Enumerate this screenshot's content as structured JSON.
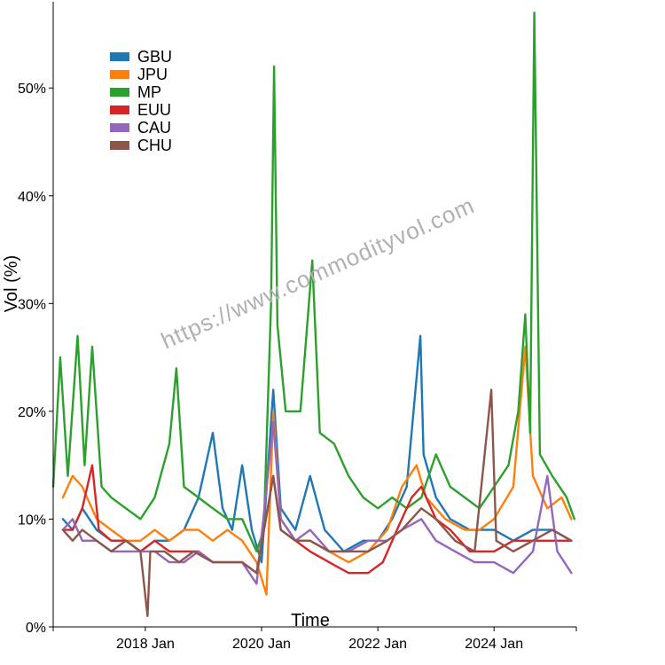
{
  "watermark": "https://www.commodityvol.com",
  "chart_data": {
    "type": "line",
    "title": "",
    "xlabel": "Time",
    "ylabel": "Vol (%)",
    "xlim": [
      "2016-06-01",
      "2025-06-01"
    ],
    "ylim": [
      0,
      58
    ],
    "yticks": [
      0,
      10,
      20,
      30,
      40,
      50
    ],
    "ytick_labels": [
      "0%",
      "10%",
      "20%",
      "30%",
      "40%",
      "50%"
    ],
    "xticks": [
      "2018-01-01",
      "2020-01-01",
      "2022-01-01",
      "2024-01-01"
    ],
    "xtick_labels": [
      "2018 Jan",
      "2020 Jan",
      "2022 Jan",
      "2024 Jan"
    ],
    "grid": false,
    "legend_position": "top-left",
    "series": [
      {
        "name": "GBU",
        "color": "#1f77b4",
        "points": [
          [
            "2016-08-01",
            10
          ],
          [
            "2016-10-01",
            9
          ],
          [
            "2016-12-01",
            11
          ],
          [
            "2017-03-01",
            9
          ],
          [
            "2017-06-01",
            8
          ],
          [
            "2017-09-01",
            8
          ],
          [
            "2017-12-01",
            7
          ],
          [
            "2018-03-01",
            8
          ],
          [
            "2018-06-01",
            8
          ],
          [
            "2018-09-01",
            9
          ],
          [
            "2018-12-01",
            12
          ],
          [
            "2019-03-01",
            18
          ],
          [
            "2019-05-01",
            11
          ],
          [
            "2019-07-01",
            9
          ],
          [
            "2019-09-01",
            15
          ],
          [
            "2019-11-01",
            9
          ],
          [
            "2020-01-01",
            6
          ],
          [
            "2020-03-15",
            22
          ],
          [
            "2020-05-01",
            11
          ],
          [
            "2020-08-01",
            9
          ],
          [
            "2020-11-01",
            14
          ],
          [
            "2021-02-01",
            9
          ],
          [
            "2021-06-01",
            7
          ],
          [
            "2021-10-01",
            8
          ],
          [
            "2022-01-01",
            8
          ],
          [
            "2022-04-01",
            10
          ],
          [
            "2022-07-01",
            13
          ],
          [
            "2022-09-25",
            27
          ],
          [
            "2022-10-15",
            16
          ],
          [
            "2023-01-01",
            12
          ],
          [
            "2023-04-01",
            10
          ],
          [
            "2023-08-01",
            9
          ],
          [
            "2024-01-01",
            9
          ],
          [
            "2024-05-01",
            8
          ],
          [
            "2024-09-01",
            9
          ],
          [
            "2025-01-01",
            9
          ],
          [
            "2025-05-01",
            8
          ]
        ]
      },
      {
        "name": "JPU",
        "color": "#ff7f0e",
        "points": [
          [
            "2016-08-01",
            12
          ],
          [
            "2016-10-01",
            14
          ],
          [
            "2016-12-01",
            13
          ],
          [
            "2017-03-01",
            10
          ],
          [
            "2017-06-01",
            9
          ],
          [
            "2017-09-01",
            8
          ],
          [
            "2017-12-01",
            8
          ],
          [
            "2018-03-01",
            9
          ],
          [
            "2018-06-01",
            8
          ],
          [
            "2018-09-01",
            9
          ],
          [
            "2018-12-01",
            9
          ],
          [
            "2019-03-01",
            8
          ],
          [
            "2019-06-01",
            9
          ],
          [
            "2019-09-01",
            8
          ],
          [
            "2019-12-01",
            6
          ],
          [
            "2020-02-01",
            3
          ],
          [
            "2020-03-15",
            20
          ],
          [
            "2020-05-01",
            10
          ],
          [
            "2020-08-01",
            8
          ],
          [
            "2020-11-01",
            8
          ],
          [
            "2021-03-01",
            7
          ],
          [
            "2021-07-01",
            6
          ],
          [
            "2021-11-01",
            7
          ],
          [
            "2022-03-01",
            9
          ],
          [
            "2022-06-01",
            13
          ],
          [
            "2022-09-01",
            15
          ],
          [
            "2022-11-01",
            12
          ],
          [
            "2023-03-01",
            10
          ],
          [
            "2023-07-01",
            9
          ],
          [
            "2023-10-01",
            9
          ],
          [
            "2024-01-01",
            10
          ],
          [
            "2024-05-01",
            13
          ],
          [
            "2024-07-15",
            26
          ],
          [
            "2024-09-01",
            14
          ],
          [
            "2024-12-01",
            11
          ],
          [
            "2025-03-01",
            12
          ],
          [
            "2025-05-01",
            10
          ]
        ]
      },
      {
        "name": "MP",
        "color": "#2ca02c",
        "points": [
          [
            "2016-06-01",
            13
          ],
          [
            "2016-07-15",
            25
          ],
          [
            "2016-09-01",
            14
          ],
          [
            "2016-11-01",
            27
          ],
          [
            "2016-12-15",
            15
          ],
          [
            "2017-02-01",
            26
          ],
          [
            "2017-04-01",
            13
          ],
          [
            "2017-06-01",
            12
          ],
          [
            "2017-09-01",
            11
          ],
          [
            "2017-12-01",
            10
          ],
          [
            "2018-03-01",
            12
          ],
          [
            "2018-06-01",
            17
          ],
          [
            "2018-07-15",
            24
          ],
          [
            "2018-09-01",
            13
          ],
          [
            "2018-12-01",
            12
          ],
          [
            "2019-03-01",
            11
          ],
          [
            "2019-06-01",
            10
          ],
          [
            "2019-09-01",
            10
          ],
          [
            "2019-12-01",
            7
          ],
          [
            "2020-01-15",
            9
          ],
          [
            "2020-03-01",
            30
          ],
          [
            "2020-03-20",
            52
          ],
          [
            "2020-04-10",
            28
          ],
          [
            "2020-06-01",
            20
          ],
          [
            "2020-09-01",
            20
          ],
          [
            "2020-11-15",
            34
          ],
          [
            "2021-01-01",
            18
          ],
          [
            "2021-04-01",
            17
          ],
          [
            "2021-07-01",
            14
          ],
          [
            "2021-10-01",
            12
          ],
          [
            "2022-01-01",
            11
          ],
          [
            "2022-04-01",
            12
          ],
          [
            "2022-07-01",
            11
          ],
          [
            "2022-10-01",
            12
          ],
          [
            "2023-01-01",
            16
          ],
          [
            "2023-04-01",
            13
          ],
          [
            "2023-07-01",
            12
          ],
          [
            "2023-10-01",
            11
          ],
          [
            "2024-01-01",
            13
          ],
          [
            "2024-04-01",
            15
          ],
          [
            "2024-06-01",
            20
          ],
          [
            "2024-07-15",
            29
          ],
          [
            "2024-08-15",
            18
          ],
          [
            "2024-09-10",
            57
          ],
          [
            "2024-10-15",
            16
          ],
          [
            "2025-01-01",
            14
          ],
          [
            "2025-04-01",
            12
          ],
          [
            "2025-05-20",
            10
          ]
        ]
      },
      {
        "name": "EUU",
        "color": "#d62728",
        "points": [
          [
            "2016-08-01",
            9
          ],
          [
            "2016-10-01",
            9
          ],
          [
            "2016-12-01",
            11
          ],
          [
            "2017-02-01",
            15
          ],
          [
            "2017-03-15",
            9
          ],
          [
            "2017-06-01",
            8
          ],
          [
            "2017-09-01",
            8
          ],
          [
            "2017-12-01",
            7
          ],
          [
            "2018-03-01",
            8
          ],
          [
            "2018-06-01",
            7
          ],
          [
            "2018-09-01",
            7
          ],
          [
            "2018-12-01",
            7
          ],
          [
            "2019-03-01",
            6
          ],
          [
            "2019-06-01",
            6
          ],
          [
            "2019-09-01",
            6
          ],
          [
            "2019-12-01",
            5
          ],
          [
            "2020-03-15",
            14
          ],
          [
            "2020-05-01",
            9
          ],
          [
            "2020-08-01",
            8
          ],
          [
            "2020-11-01",
            7
          ],
          [
            "2021-03-01",
            6
          ],
          [
            "2021-07-01",
            5
          ],
          [
            "2021-11-01",
            5
          ],
          [
            "2022-02-01",
            6
          ],
          [
            "2022-05-01",
            9
          ],
          [
            "2022-08-01",
            12
          ],
          [
            "2022-10-01",
            13
          ],
          [
            "2023-01-01",
            10
          ],
          [
            "2023-04-01",
            9
          ],
          [
            "2023-08-01",
            7
          ],
          [
            "2024-01-01",
            7
          ],
          [
            "2024-05-01",
            8
          ],
          [
            "2024-09-01",
            8
          ],
          [
            "2025-01-01",
            8
          ],
          [
            "2025-05-01",
            8
          ]
        ]
      },
      {
        "name": "CAU",
        "color": "#9467bd",
        "points": [
          [
            "2016-08-01",
            9
          ],
          [
            "2016-10-01",
            10
          ],
          [
            "2016-12-01",
            8
          ],
          [
            "2017-03-01",
            8
          ],
          [
            "2017-06-01",
            7
          ],
          [
            "2017-09-01",
            7
          ],
          [
            "2017-12-01",
            7
          ],
          [
            "2018-03-01",
            7
          ],
          [
            "2018-06-01",
            6
          ],
          [
            "2018-09-01",
            6
          ],
          [
            "2018-12-01",
            7
          ],
          [
            "2019-03-01",
            6
          ],
          [
            "2019-06-01",
            6
          ],
          [
            "2019-09-01",
            6
          ],
          [
            "2019-12-01",
            4
          ],
          [
            "2020-03-15",
            19
          ],
          [
            "2020-05-01",
            10
          ],
          [
            "2020-08-01",
            8
          ],
          [
            "2020-11-01",
            9
          ],
          [
            "2021-03-01",
            7
          ],
          [
            "2021-07-01",
            7
          ],
          [
            "2021-11-01",
            8
          ],
          [
            "2022-03-01",
            8
          ],
          [
            "2022-06-01",
            9
          ],
          [
            "2022-10-01",
            10
          ],
          [
            "2023-01-01",
            8
          ],
          [
            "2023-05-01",
            7
          ],
          [
            "2023-09-01",
            6
          ],
          [
            "2024-01-01",
            6
          ],
          [
            "2024-05-01",
            5
          ],
          [
            "2024-09-01",
            7
          ],
          [
            "2024-12-01",
            14
          ],
          [
            "2025-02-01",
            7
          ],
          [
            "2025-05-01",
            5
          ]
        ]
      },
      {
        "name": "CHU",
        "color": "#8c564b",
        "points": [
          [
            "2016-08-01",
            9
          ],
          [
            "2016-10-01",
            8
          ],
          [
            "2016-12-01",
            9
          ],
          [
            "2017-03-01",
            8
          ],
          [
            "2017-06-01",
            7
          ],
          [
            "2017-09-01",
            8
          ],
          [
            "2017-12-01",
            7
          ],
          [
            "2018-01-15",
            1
          ],
          [
            "2018-02-01",
            7
          ],
          [
            "2018-05-01",
            7
          ],
          [
            "2018-08-01",
            6
          ],
          [
            "2018-11-01",
            7
          ],
          [
            "2019-03-01",
            6
          ],
          [
            "2019-06-01",
            6
          ],
          [
            "2019-09-01",
            6
          ],
          [
            "2019-12-01",
            5
          ],
          [
            "2020-03-15",
            14
          ],
          [
            "2020-05-01",
            9
          ],
          [
            "2020-08-01",
            8
          ],
          [
            "2020-11-01",
            8
          ],
          [
            "2021-03-01",
            7
          ],
          [
            "2021-07-01",
            7
          ],
          [
            "2021-11-01",
            7
          ],
          [
            "2022-03-01",
            8
          ],
          [
            "2022-06-01",
            9
          ],
          [
            "2022-10-01",
            11
          ],
          [
            "2023-01-01",
            10
          ],
          [
            "2023-05-01",
            8
          ],
          [
            "2023-09-01",
            7
          ],
          [
            "2023-12-15",
            22
          ],
          [
            "2024-01-15",
            8
          ],
          [
            "2024-05-01",
            7
          ],
          [
            "2024-09-01",
            8
          ],
          [
            "2025-01-01",
            9
          ],
          [
            "2025-05-01",
            8
          ]
        ]
      }
    ]
  }
}
